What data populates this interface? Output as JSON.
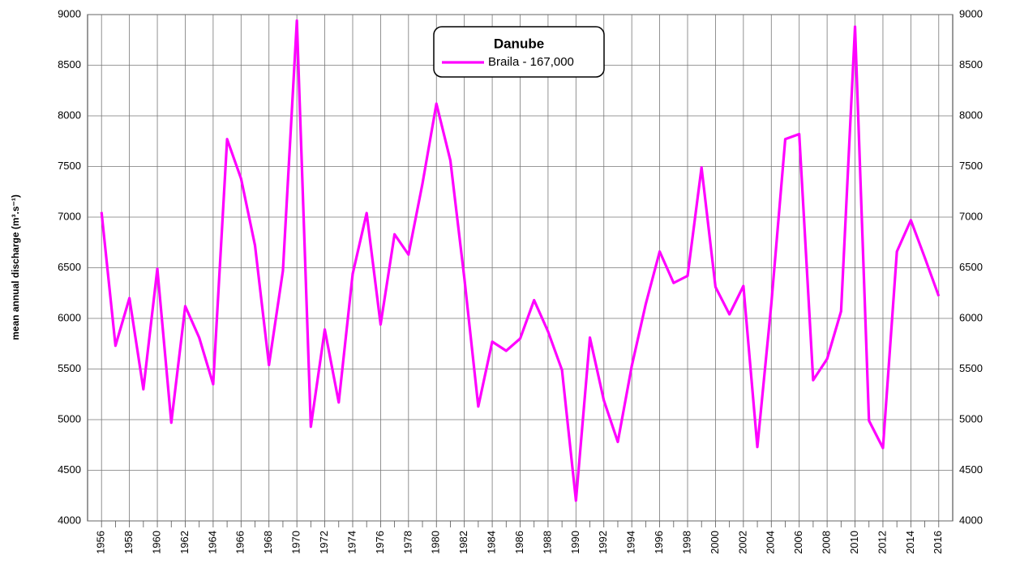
{
  "chart_data": {
    "type": "line",
    "title": "Danube",
    "y_label": "mean annual discharge (m³.s⁻¹)",
    "x": [
      1956,
      1957,
      1958,
      1959,
      1960,
      1961,
      1962,
      1963,
      1964,
      1965,
      1966,
      1967,
      1968,
      1969,
      1970,
      1971,
      1972,
      1973,
      1974,
      1975,
      1976,
      1977,
      1978,
      1979,
      1980,
      1981,
      1982,
      1983,
      1984,
      1985,
      1986,
      1987,
      1988,
      1989,
      1990,
      1991,
      1992,
      1993,
      1994,
      1995,
      1996,
      1997,
      1998,
      1999,
      2000,
      2001,
      2002,
      2003,
      2004,
      2005,
      2006,
      2007,
      2008,
      2009,
      2010,
      2011,
      2012,
      2013,
      2014,
      2015,
      2016
    ],
    "series": [
      {
        "name": "Braila - 167,000",
        "color": "#ff00ff",
        "values": [
          7050,
          5730,
          6200,
          5300,
          6490,
          4970,
          6120,
          5810,
          5350,
          7770,
          7380,
          6720,
          5540,
          6470,
          8940,
          4930,
          5890,
          5170,
          6440,
          7040,
          5940,
          6830,
          6630,
          7330,
          8120,
          7560,
          6400,
          5130,
          5770,
          5680,
          5800,
          6180,
          5870,
          5490,
          4200,
          5810,
          5190,
          4780,
          5530,
          6140,
          6660,
          6350,
          6420,
          7490,
          6310,
          6040,
          6320,
          4730,
          6140,
          7770,
          7820,
          5390,
          5600,
          6070,
          8880,
          4990,
          4720,
          6660,
          6970,
          6600,
          6220
        ]
      }
    ],
    "xlim": [
      1955,
      2017
    ],
    "xticks": [
      1956,
      1958,
      1960,
      1962,
      1964,
      1966,
      1968,
      1970,
      1972,
      1974,
      1976,
      1978,
      1980,
      1982,
      1984,
      1986,
      1988,
      1990,
      1992,
      1994,
      1996,
      1998,
      2000,
      2002,
      2004,
      2006,
      2008,
      2010,
      2012,
      2014,
      2016
    ],
    "ylim": [
      4000,
      9000
    ],
    "yticks": [
      4000,
      4500,
      5000,
      5500,
      6000,
      6500,
      7000,
      7500,
      8000,
      8500,
      9000
    ],
    "grid": true
  }
}
